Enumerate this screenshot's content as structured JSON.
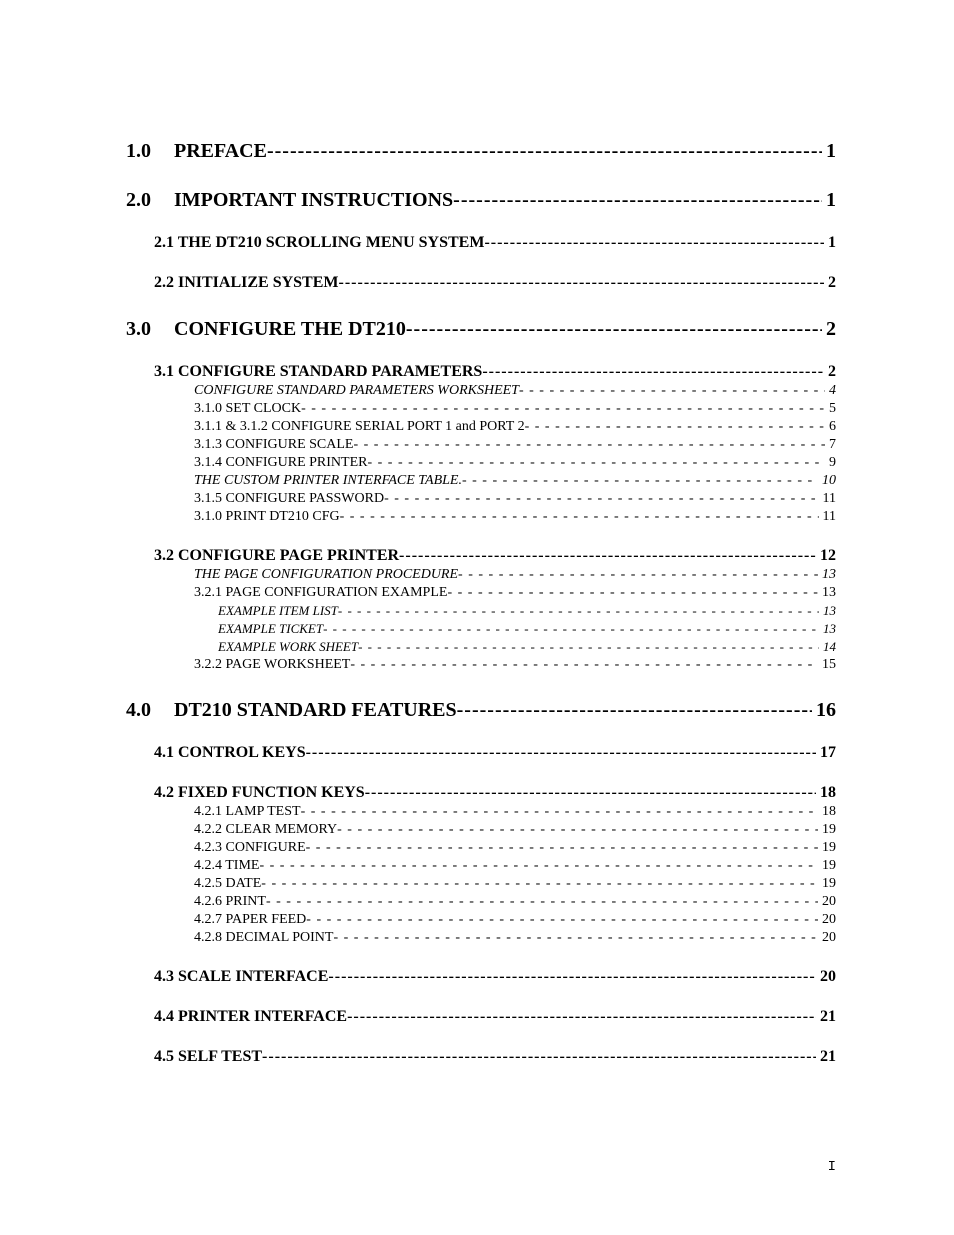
{
  "leader": "- - - - - - - - - - - - - - - - - - - - - - - - - - - - - - - - - - - - - - - - - - - - - - - - - - - - - - - - - - - - - - - - - - - - - - - - - - - - - - - - - - - - - - - - - - - - - - - - - - - - - - - - - - - - - - - - - - - - - - - - - - - -",
  "leader_bold": "-----------------------------------------------------------------------------------------------------------------------------------------",
  "footer_page": "I",
  "entries": [
    {
      "cls": "lvl1 first",
      "num": "1.0",
      "label": "PREFACE",
      "page": " 1",
      "leader": "bold"
    },
    {
      "cls": "lvl1",
      "num": "2.0",
      "label": "IMPORTANT INSTRUCTIONS",
      "page": " 1",
      "leader": "bold"
    },
    {
      "cls": "lvl2",
      "label": "2.1  THE DT210 SCROLLING MENU SYSTEM",
      "page": " 1",
      "leader": "bold"
    },
    {
      "cls": "lvl2",
      "label": "2.2  INITIALIZE SYSTEM",
      "page": " 2",
      "leader": "bold"
    },
    {
      "cls": "lvl1",
      "num": "3.0",
      "label": "CONFIGURE THE DT210 ",
      "page": " 2",
      "leader": "bold"
    },
    {
      "cls": "lvl2",
      "label": "3.1  CONFIGURE STANDARD PARAMETERS ",
      "page": " 2",
      "leader": "bold"
    },
    {
      "cls": "lvl3i",
      "label": "CONFIGURE STANDARD PARAMETERS WORKSHEET",
      "page": "4",
      "leader": "dash"
    },
    {
      "cls": "lvl3",
      "label": "3.1.0  SET CLOCK",
      "page": " 5",
      "leader": "dash"
    },
    {
      "cls": "lvl3",
      "label": "3.1.1  & 3.1.2  CONFIGURE SERIAL PORT 1 and PORT 2 ",
      "page": " 6",
      "leader": "dash"
    },
    {
      "cls": "lvl3",
      "label": "3.1.3  CONFIGURE SCALE ",
      "page": " 7",
      "leader": "dash"
    },
    {
      "cls": "lvl3",
      "label": "3.1.4  CONFIGURE PRINTER",
      "page": " 9",
      "leader": "dash"
    },
    {
      "cls": "lvl3i",
      "label": "THE CUSTOM PRINTER INTERFACE TABLE. ",
      "page": " 10",
      "leader": "dash"
    },
    {
      "cls": "lvl3",
      "label": "3.1.5  CONFIGURE PASSWORD ",
      "page": " 11",
      "leader": "dash"
    },
    {
      "cls": "lvl3",
      "label": "3.1.0  PRINT DT210 CFG",
      "page": " 11",
      "leader": "dash"
    },
    {
      "cls": "lvl2",
      "label": "3.2  CONFIGURE PAGE PRINTER ",
      "page": " 12",
      "leader": "bold"
    },
    {
      "cls": "lvl3i",
      "label": "THE PAGE CONFIGURATION PROCEDURE",
      "page": " 13",
      "leader": "dash"
    },
    {
      "cls": "lvl3",
      "label": "3.2.1  PAGE CONFIGURATION EXAMPLE",
      "page": " 13",
      "leader": "dash"
    },
    {
      "cls": "lvl4i",
      "label": "EXAMPLE ITEM LIST",
      "page": " 13",
      "leader": "dash"
    },
    {
      "cls": "lvl4i",
      "label": "EXAMPLE TICKET ",
      "page": " 13",
      "leader": "dash"
    },
    {
      "cls": "lvl4i",
      "label": "EXAMPLE WORK SHEET ",
      "page": " 14",
      "leader": "dash"
    },
    {
      "cls": "lvl3",
      "label": "3.2.2 PAGE WORKSHEET",
      "page": " 15",
      "leader": "dash"
    },
    {
      "cls": "lvl1",
      "num": "4.0",
      "label": "DT210 STANDARD FEATURES ",
      "page": "16",
      "leader": "bold"
    },
    {
      "cls": "lvl2",
      "label": "4.1  CONTROL KEYS",
      "page": " 17",
      "leader": "bold"
    },
    {
      "cls": "lvl2",
      "label": "4.2  FIXED FUNCTION KEYS",
      "page": " 18",
      "leader": "bold"
    },
    {
      "cls": "lvl3",
      "label": "4.2.1   LAMP TEST ",
      "page": " 18",
      "leader": "dash"
    },
    {
      "cls": "lvl3",
      "label": "4.2.2   CLEAR MEMORY",
      "page": " 19",
      "leader": "dash"
    },
    {
      "cls": "lvl3",
      "label": "4.2.3  CONFIGURE",
      "page": " 19",
      "leader": "dash"
    },
    {
      "cls": "lvl3",
      "label": "4.2.4   TIME",
      "page": " 19",
      "leader": "dash"
    },
    {
      "cls": "lvl3",
      "label": "4.2.5  DATE",
      "page": " 19",
      "leader": "dash"
    },
    {
      "cls": "lvl3",
      "label": "4.2.6  PRINT",
      "page": " 20",
      "leader": "dash"
    },
    {
      "cls": "lvl3",
      "label": "4.2.7  PAPER FEED",
      "page": " 20",
      "leader": "dash"
    },
    {
      "cls": "lvl3",
      "label": "4.2.8  DECIMAL POINT ",
      "page": " 20",
      "leader": "dash"
    },
    {
      "cls": "lvl2",
      "label": "4.3  SCALE INTERFACE ",
      "page": " 20",
      "leader": "bold"
    },
    {
      "cls": "lvl2",
      "label": "4.4  PRINTER INTERFACE",
      "page": " 21",
      "leader": "bold"
    },
    {
      "cls": "lvl2",
      "label": "4.5  SELF TEST",
      "page": " 21",
      "leader": "bold"
    }
  ]
}
